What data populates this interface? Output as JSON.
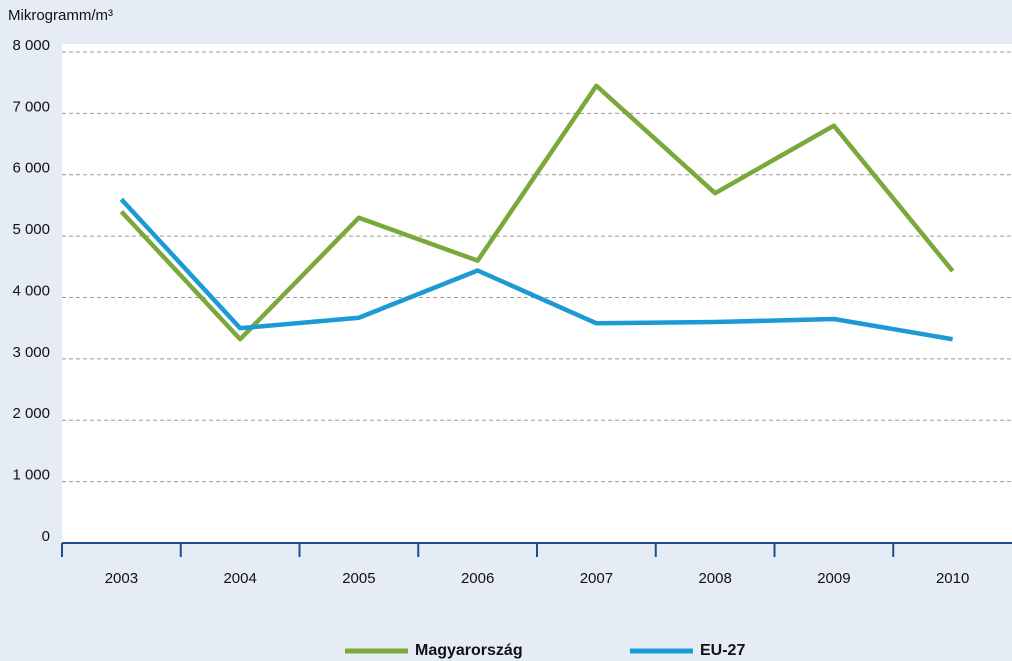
{
  "chart_data": {
    "type": "line",
    "y_label": "Mikrogramm/m³",
    "categories": [
      "2003",
      "2004",
      "2005",
      "2006",
      "2007",
      "2008",
      "2009",
      "2010"
    ],
    "series": [
      {
        "name": "Magyarország",
        "color": "#7aa83a",
        "values": [
          5400,
          3320,
          5300,
          4600,
          7450,
          5700,
          6800,
          4430
        ]
      },
      {
        "name": "EU-27",
        "color": "#1b9ad6",
        "values": [
          5600,
          3500,
          3670,
          4440,
          3580,
          3600,
          3650,
          3320
        ]
      }
    ],
    "ylim": [
      0,
      8000
    ],
    "yticks": [
      0,
      {
        "value": 1000,
        "label": "1 000"
      },
      {
        "value": 2000,
        "label": "2 000"
      },
      {
        "value": 3000,
        "label": "3 000"
      },
      {
        "value": 4000,
        "label": "4 000"
      },
      {
        "value": 5000,
        "label": "5 000"
      },
      {
        "value": 6000,
        "label": "6 000"
      },
      {
        "value": 7000,
        "label": "7 000"
      },
      {
        "value": 8000,
        "label": "8 000"
      }
    ],
    "grid": true,
    "legend": "bottom"
  }
}
